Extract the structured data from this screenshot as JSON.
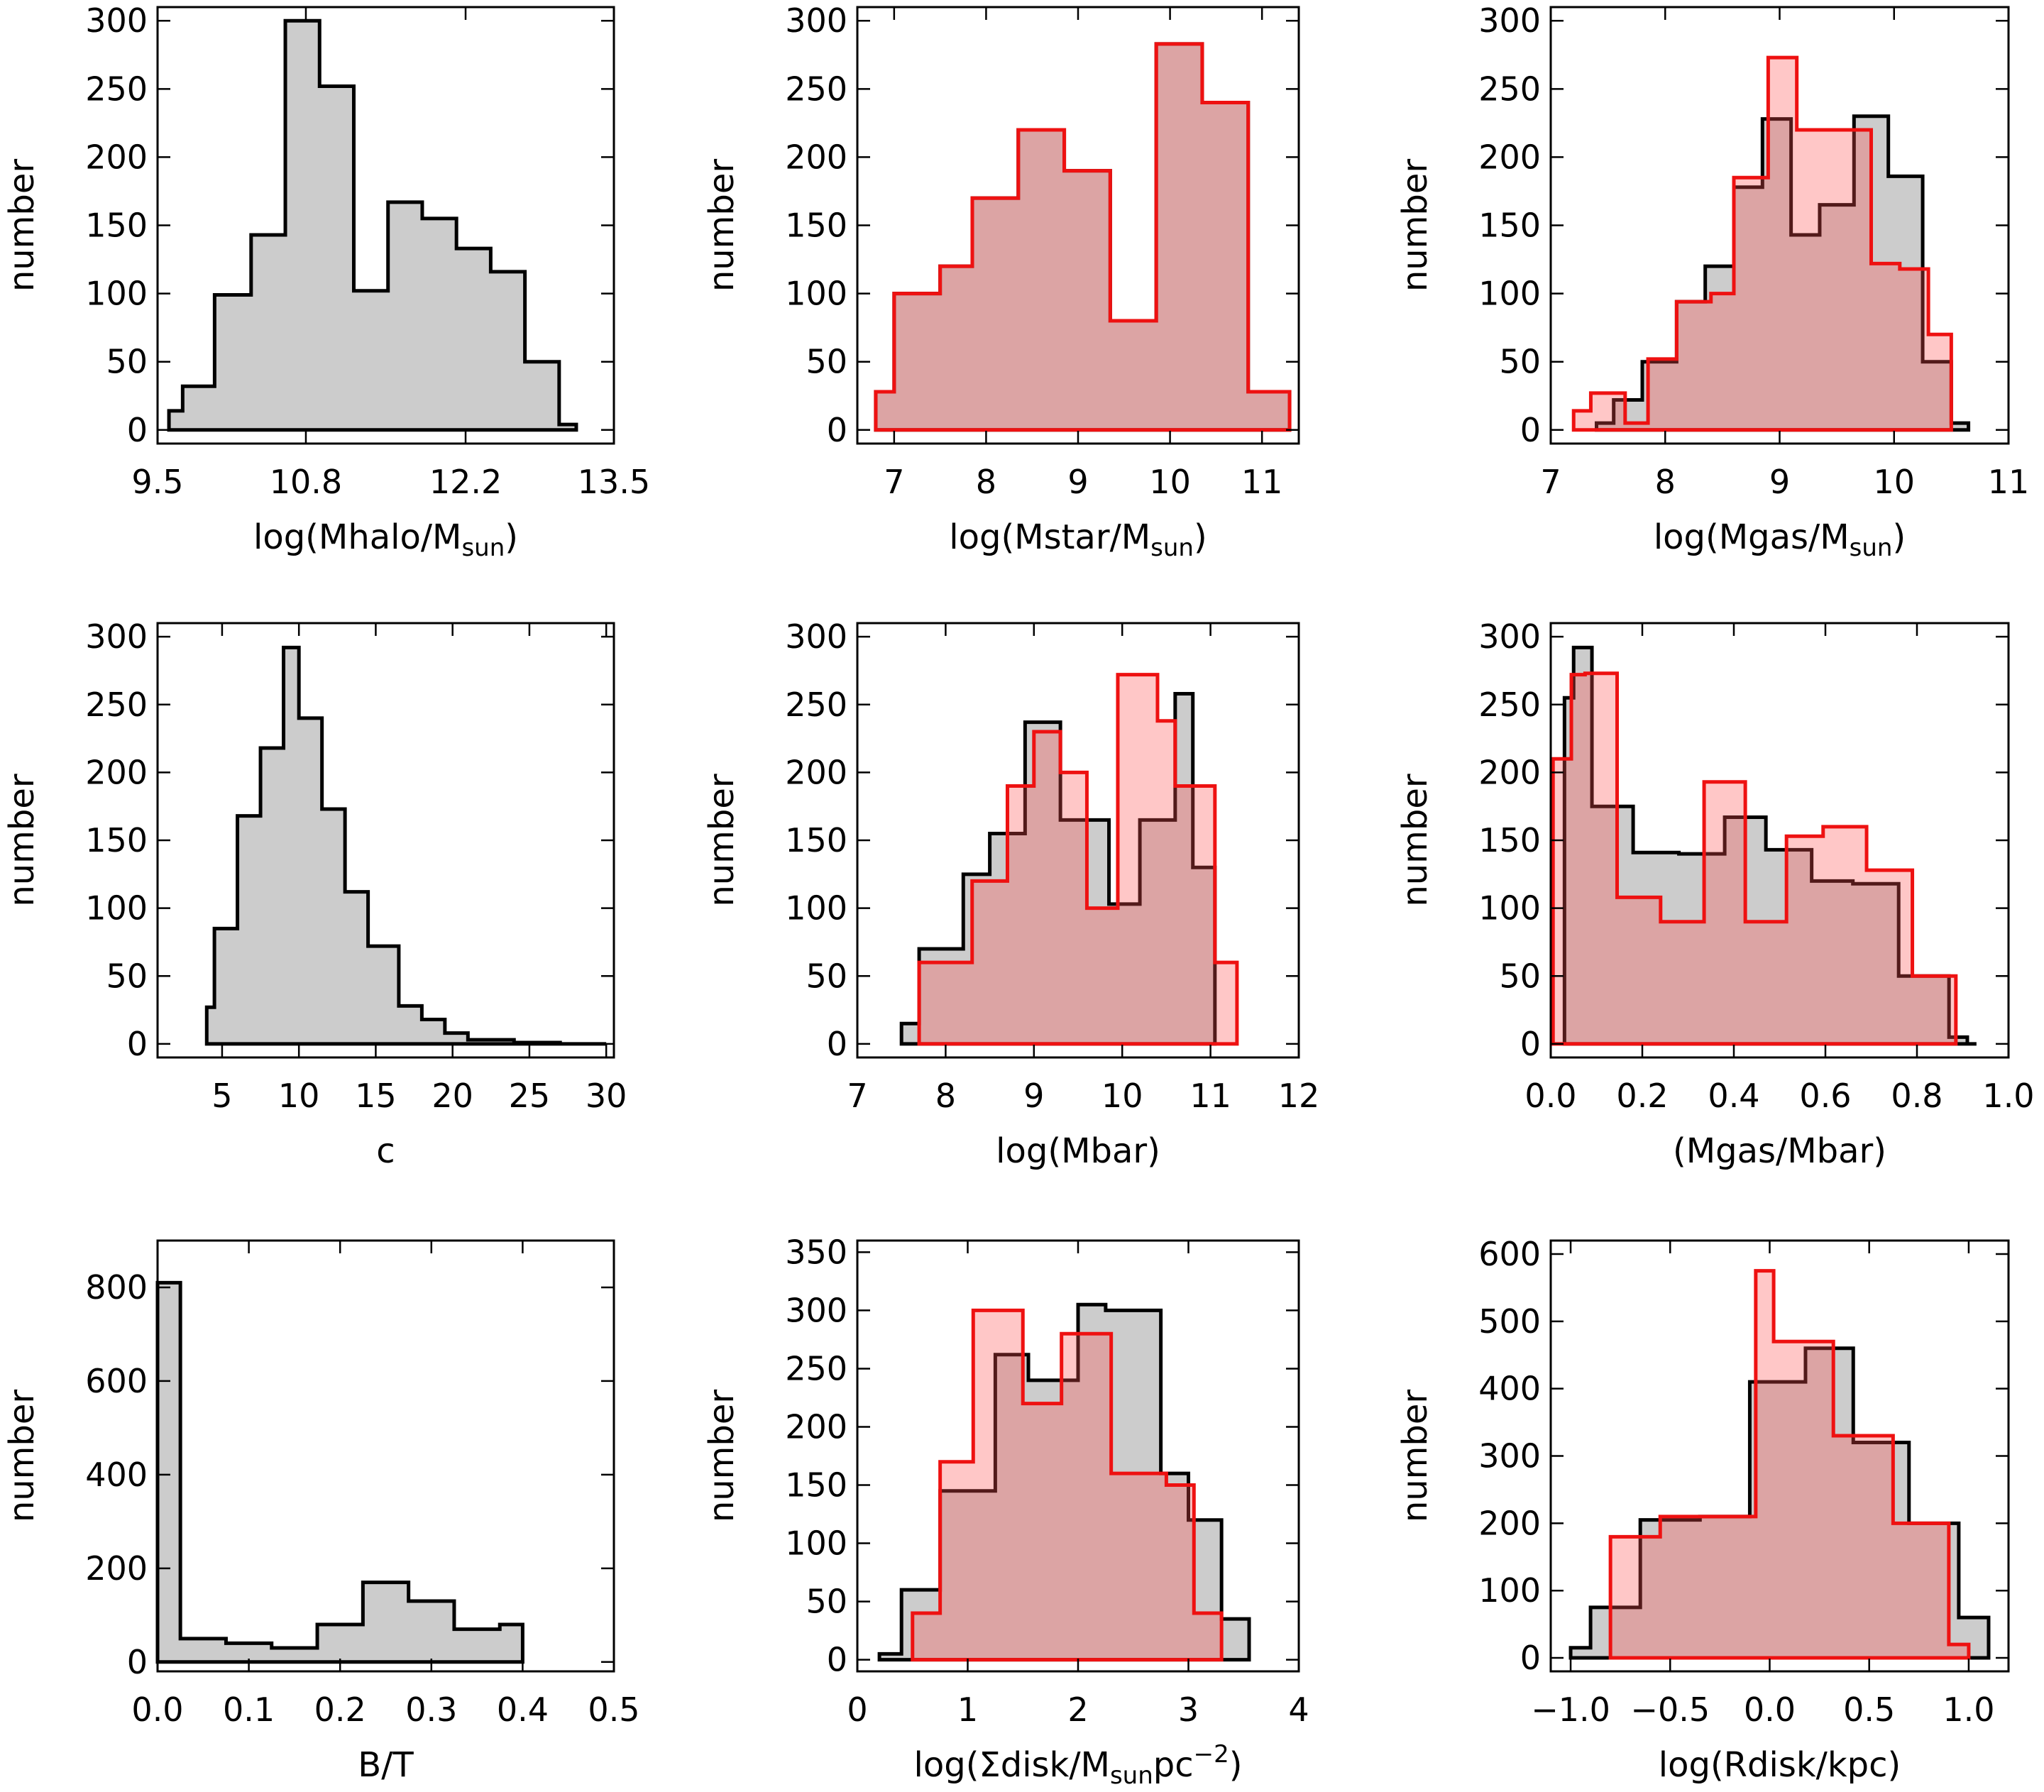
{
  "chart_data": [
    {
      "type": "histogram",
      "ylabel": "number",
      "xlabel": "log(Mhalo/M",
      "xlabel_sub": "sun",
      "xlabel_after": ")",
      "xlim": [
        9.5,
        13.5
      ],
      "ylim": [
        -10,
        310
      ],
      "xticks": [
        9.5,
        10.8,
        12.2,
        13.5
      ],
      "xtick_labels": [
        "9.5",
        "10.8",
        "12.2",
        "13.5"
      ],
      "yticks": [
        0,
        50,
        100,
        150,
        200,
        250,
        300
      ],
      "ytick_labels": [
        "0",
        "50",
        "100",
        "150",
        "200",
        "250",
        "300"
      ],
      "series": [
        {
          "name": "black",
          "color": "#000000",
          "fill": "#cccccc",
          "edges": [
            9.6,
            9.72,
            10.0,
            10.32,
            10.62,
            10.92,
            11.22,
            11.52,
            11.82,
            12.12,
            12.42,
            12.72,
            13.02,
            13.17
          ],
          "values": [
            14,
            32,
            99,
            143,
            300,
            252,
            102,
            167,
            155,
            133,
            116,
            50,
            4
          ]
        }
      ]
    },
    {
      "type": "histogram",
      "ylabel": "number",
      "xlabel": "log(Mstar/M",
      "xlabel_sub": "sun",
      "xlabel_after": ")",
      "xlim": [
        6.6,
        11.4
      ],
      "ylim": [
        -10,
        310
      ],
      "xticks": [
        7,
        8,
        9,
        10,
        11
      ],
      "xtick_labels": [
        "7",
        "8",
        "9",
        "10",
        "11"
      ],
      "yticks": [
        0,
        50,
        100,
        150,
        200,
        250,
        300
      ],
      "ytick_labels": [
        "0",
        "50",
        "100",
        "150",
        "200",
        "250",
        "300"
      ],
      "series": [
        {
          "name": "black",
          "color": "#000000",
          "fill": "#cccccc",
          "edges": [
            6.8,
            7.0,
            7.5,
            7.85,
            8.35,
            8.85,
            9.35,
            9.85,
            10.35,
            10.85,
            11.3
          ],
          "values": [
            28,
            100,
            120,
            170,
            220,
            190,
            80,
            283,
            240,
            28
          ]
        },
        {
          "name": "red",
          "color": "#ee1111",
          "fill": "rgba(255,80,80,0.32)",
          "edges": [
            6.8,
            7.0,
            7.5,
            7.85,
            8.35,
            8.85,
            9.35,
            9.85,
            10.35,
            10.85,
            11.3
          ],
          "values": [
            28,
            100,
            120,
            170,
            220,
            190,
            80,
            283,
            240,
            28
          ]
        }
      ]
    },
    {
      "type": "histogram",
      "ylabel": "number",
      "xlabel": "log(Mgas/M",
      "xlabel_sub": "sun",
      "xlabel_after": ")",
      "xlim": [
        7,
        11
      ],
      "ylim": [
        -10,
        310
      ],
      "xticks": [
        7,
        8,
        9,
        10,
        11
      ],
      "xtick_labels": [
        "7",
        "8",
        "9",
        "10",
        "11"
      ],
      "yticks": [
        0,
        50,
        100,
        150,
        200,
        250,
        300
      ],
      "ytick_labels": [
        "0",
        "50",
        "100",
        "150",
        "200",
        "250",
        "300"
      ],
      "series": [
        {
          "name": "black",
          "color": "#000000",
          "fill": "#cccccc",
          "edges": [
            7.4,
            7.55,
            7.8,
            8.1,
            8.35,
            8.6,
            8.85,
            9.1,
            9.35,
            9.65,
            9.95,
            10.25,
            10.5,
            10.65
          ],
          "values": [
            5,
            22,
            50,
            94,
            120,
            178,
            228,
            143,
            165,
            230,
            186,
            50,
            5
          ]
        },
        {
          "name": "red",
          "color": "#ee1111",
          "fill": "rgba(255,80,80,0.32)",
          "edges": [
            7.2,
            7.35,
            7.65,
            7.85,
            8.1,
            8.4,
            8.6,
            8.9,
            9.15,
            9.6,
            9.8,
            10.05,
            10.3,
            10.5
          ],
          "values": [
            14,
            27,
            5,
            52,
            94,
            100,
            185,
            273,
            220,
            220,
            122,
            118,
            70
          ]
        }
      ]
    },
    {
      "type": "histogram",
      "ylabel": "number",
      "xlabel": "c",
      "xlim": [
        0.8,
        30.5
      ],
      "ylim": [
        -10,
        310
      ],
      "xticks": [
        5,
        10,
        15,
        20,
        25,
        30
      ],
      "xtick_labels": [
        "5",
        "10",
        "15",
        "20",
        "25",
        "30"
      ],
      "yticks": [
        0,
        50,
        100,
        150,
        200,
        250,
        300
      ],
      "ytick_labels": [
        "0",
        "50",
        "100",
        "150",
        "200",
        "250",
        "300"
      ],
      "series": [
        {
          "name": "black",
          "color": "#000000",
          "fill": "#cccccc",
          "edges": [
            4.0,
            4.5,
            6.0,
            7.5,
            9.0,
            10.0,
            11.5,
            13.0,
            14.5,
            16.5,
            18.0,
            19.5,
            21.0,
            24.0,
            27.0,
            30.0
          ],
          "values": [
            27,
            85,
            168,
            218,
            292,
            240,
            173,
            112,
            72,
            28,
            18,
            8,
            3,
            1,
            0
          ]
        }
      ]
    },
    {
      "type": "histogram",
      "ylabel": "number",
      "xlabel": "log(Mbar)",
      "xlim": [
        7,
        12
      ],
      "ylim": [
        -10,
        310
      ],
      "xticks": [
        7,
        8,
        9,
        10,
        11,
        12
      ],
      "xtick_labels": [
        "7",
        "8",
        "9",
        "10",
        "11",
        "12"
      ],
      "yticks": [
        0,
        50,
        100,
        150,
        200,
        250,
        300
      ],
      "ytick_labels": [
        "0",
        "50",
        "100",
        "150",
        "200",
        "250",
        "300"
      ],
      "series": [
        {
          "name": "black",
          "color": "#000000",
          "fill": "#cccccc",
          "edges": [
            7.5,
            7.7,
            8.2,
            8.5,
            8.9,
            9.3,
            9.85,
            10.2,
            10.6,
            10.8,
            11.05
          ],
          "values": [
            15,
            70,
            125,
            155,
            237,
            165,
            103,
            165,
            258,
            130
          ]
        },
        {
          "name": "red",
          "color": "#ee1111",
          "fill": "rgba(255,80,80,0.32)",
          "edges": [
            7.7,
            8.3,
            8.7,
            9.0,
            9.3,
            9.6,
            9.95,
            10.4,
            10.6,
            11.05,
            11.3
          ],
          "values": [
            60,
            120,
            190,
            230,
            200,
            100,
            272,
            238,
            190,
            60
          ]
        }
      ]
    },
    {
      "type": "histogram",
      "ylabel": "number",
      "xlabel": "(Mgas/Mbar)",
      "xlim": [
        0.0,
        1.0
      ],
      "ylim": [
        -10,
        310
      ],
      "xticks": [
        0.0,
        0.2,
        0.4,
        0.6,
        0.8,
        1.0
      ],
      "xtick_labels": [
        "0.0",
        "0.2",
        "0.4",
        "0.6",
        "0.8",
        "1.0"
      ],
      "yticks": [
        0,
        50,
        100,
        150,
        200,
        250,
        300
      ],
      "ytick_labels": [
        "0",
        "50",
        "100",
        "150",
        "200",
        "250",
        "300"
      ],
      "series": [
        {
          "name": "black",
          "color": "#000000",
          "fill": "#cccccc",
          "edges": [
            0.03,
            0.05,
            0.09,
            0.18,
            0.28,
            0.38,
            0.47,
            0.57,
            0.66,
            0.76,
            0.87,
            0.91,
            0.93
          ],
          "values": [
            255,
            292,
            175,
            141,
            140,
            167,
            143,
            120,
            118,
            50,
            5,
            0
          ]
        },
        {
          "name": "red",
          "color": "#ee1111",
          "fill": "rgba(255,80,80,0.32)",
          "edges": [
            0.005,
            0.045,
            0.075,
            0.145,
            0.24,
            0.335,
            0.425,
            0.515,
            0.595,
            0.69,
            0.79,
            0.885
          ],
          "values": [
            210,
            272,
            273,
            108,
            90,
            193,
            90,
            153,
            160,
            128,
            50
          ]
        }
      ]
    },
    {
      "type": "histogram",
      "ylabel": "number",
      "xlabel": "B/T",
      "xlim": [
        0.0,
        0.5
      ],
      "ylim": [
        -20,
        900
      ],
      "xticks": [
        0.0,
        0.1,
        0.2,
        0.3,
        0.4,
        0.5
      ],
      "xtick_labels": [
        "0.0",
        "0.1",
        "0.2",
        "0.3",
        "0.4",
        "0.5"
      ],
      "yticks": [
        0,
        200,
        400,
        600,
        800
      ],
      "ytick_labels": [
        "0",
        "200",
        "400",
        "600",
        "800"
      ],
      "series": [
        {
          "name": "black",
          "color": "#000000",
          "fill": "#cccccc",
          "edges": [
            0.0,
            0.025,
            0.075,
            0.125,
            0.175,
            0.225,
            0.275,
            0.325,
            0.375,
            0.4
          ],
          "values": [
            810,
            50,
            40,
            30,
            80,
            170,
            130,
            70,
            80
          ]
        }
      ]
    },
    {
      "type": "histogram",
      "ylabel": "number",
      "xlabel": "log(Σdisk/M",
      "xlabel_sub": "sun",
      "xlabel_mid": "pc",
      "xlabel_sup": "−2",
      "xlabel_after": ")",
      "xlim": [
        0,
        4
      ],
      "ylim": [
        -10,
        360
      ],
      "xticks": [
        0,
        1,
        2,
        3,
        4
      ],
      "xtick_labels": [
        "0",
        "1",
        "2",
        "3",
        "4"
      ],
      "yticks": [
        0,
        50,
        100,
        150,
        200,
        250,
        300,
        350
      ],
      "ytick_labels": [
        "0",
        "50",
        "100",
        "150",
        "200",
        "250",
        "300",
        "350"
      ],
      "series": [
        {
          "name": "black",
          "color": "#000000",
          "fill": "#cccccc",
          "edges": [
            0.2,
            0.4,
            0.75,
            1.25,
            1.55,
            2.0,
            2.25,
            2.75,
            3.0,
            3.3,
            3.55
          ],
          "values": [
            5,
            60,
            145,
            262,
            240,
            305,
            300,
            160,
            120,
            35
          ]
        },
        {
          "name": "red",
          "color": "#ee1111",
          "fill": "rgba(255,80,80,0.32)",
          "edges": [
            0.5,
            0.75,
            1.05,
            1.5,
            1.85,
            2.3,
            2.8,
            3.05,
            3.3
          ],
          "values": [
            40,
            170,
            300,
            220,
            280,
            160,
            150,
            40
          ]
        }
      ]
    },
    {
      "type": "histogram",
      "ylabel": "number",
      "xlabel": "log(Rdisk/kpc)",
      "xlim": [
        -1.1,
        1.2
      ],
      "ylim": [
        -20,
        620
      ],
      "xticks": [
        -1.0,
        -0.5,
        0.0,
        0.5,
        1.0
      ],
      "xtick_labels": [
        "−1.0",
        "−0.5",
        "0.0",
        "0.5",
        "1.0"
      ],
      "yticks": [
        0,
        100,
        200,
        300,
        400,
        500,
        600
      ],
      "ytick_labels": [
        "0",
        "100",
        "200",
        "300",
        "400",
        "500",
        "600"
      ],
      "series": [
        {
          "name": "black",
          "color": "#000000",
          "fill": "#cccccc",
          "edges": [
            -1.0,
            -0.9,
            -0.65,
            -0.35,
            -0.1,
            0.18,
            0.42,
            0.7,
            0.95,
            1.1
          ],
          "values": [
            15,
            75,
            205,
            210,
            410,
            460,
            320,
            200,
            60
          ]
        },
        {
          "name": "red",
          "color": "#ee1111",
          "fill": "rgba(255,80,80,0.32)",
          "edges": [
            -0.8,
            -0.55,
            -0.3,
            -0.07,
            0.02,
            0.32,
            0.62,
            0.9,
            1.0
          ],
          "values": [
            180,
            210,
            210,
            575,
            470,
            330,
            200,
            20
          ]
        }
      ]
    }
  ]
}
